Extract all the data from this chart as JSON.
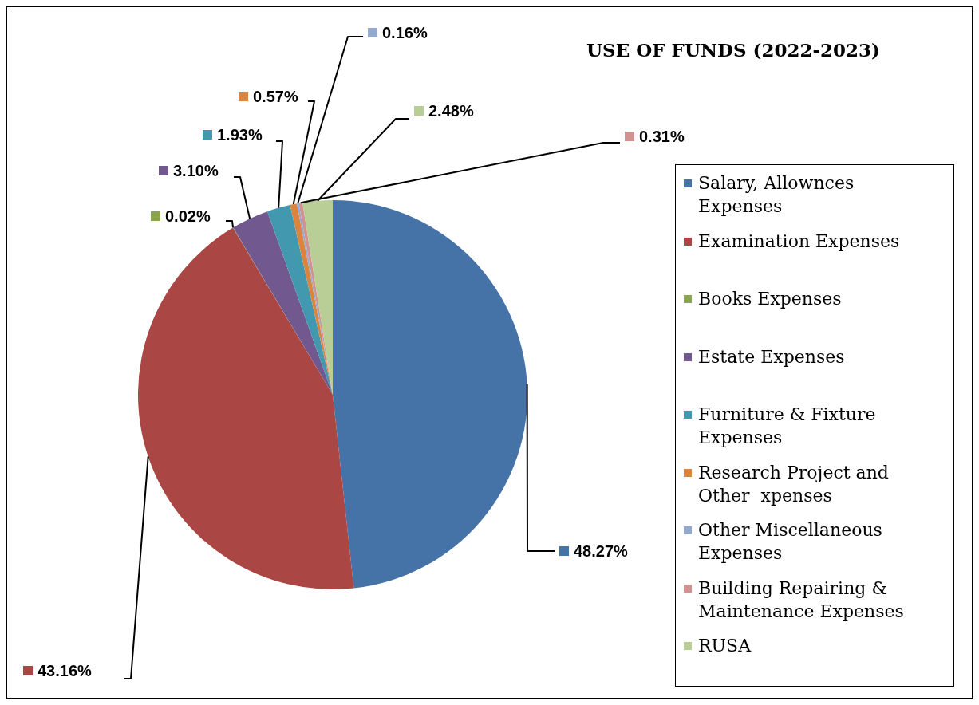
{
  "chart_data": {
    "type": "pie",
    "title": "USE OF FUNDS (2022-2023)",
    "categories": [
      "Salary, Allownces Expenses",
      "Examination Expenses",
      "Books Expenses",
      "Estate Expenses",
      "Furniture & Fixture Expenses",
      "Research Project and Other  xpenses",
      "Other Miscellaneous Expenses",
      "Building Repairing & Maintenance Expenses",
      "RUSA"
    ],
    "values": [
      48.27,
      43.16,
      0.02,
      3.1,
      1.93,
      0.57,
      0.16,
      0.31,
      2.48
    ],
    "value_labels": [
      "48.27%",
      "43.16%",
      "0.02%",
      "3.10%",
      "1.93%",
      "0.57%",
      "0.16%",
      "0.31%",
      "2.48%"
    ],
    "colors": [
      "#4572a7",
      "#aa4643",
      "#89a54e",
      "#71588f",
      "#4198af",
      "#db843d",
      "#93a9cf",
      "#d19392",
      "#b9cd96"
    ],
    "legend": "right"
  }
}
